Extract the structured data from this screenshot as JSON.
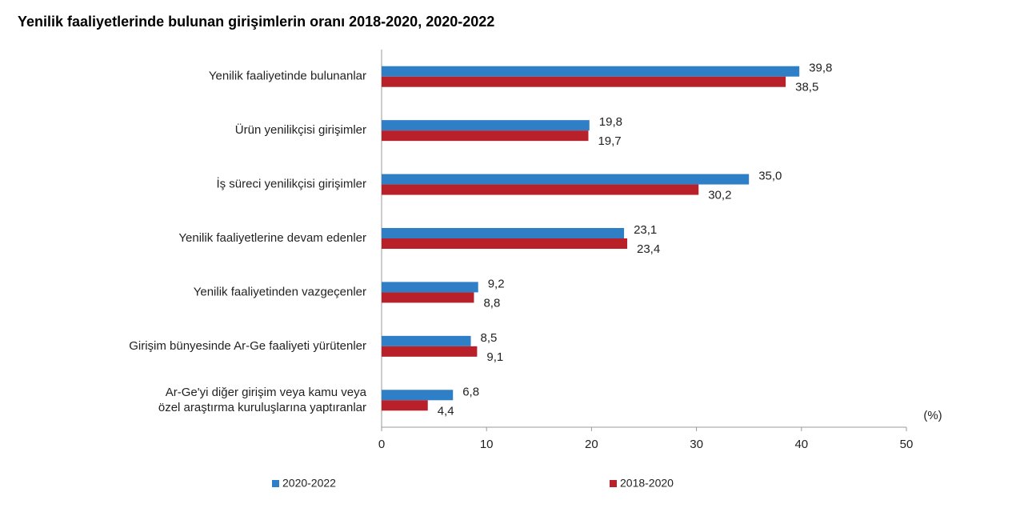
{
  "chart_data": {
    "type": "bar",
    "orientation": "horizontal",
    "title": "Yenilik faaliyetlerinde bulunan girişimlerin oranı 2018-2020, 2020-2022",
    "categories": [
      "Yenilik faaliyetinde bulunanlar",
      "Ürün yenilikçisi girişimler",
      "İş süreci yenilikçisi girişimler",
      "Yenilik faaliyetlerine devam edenler",
      "Yenilik faaliyetinden vazgeçenler",
      "Girişim bünyesinde Ar-Ge faaliyeti yürütenler",
      "Ar-Ge'yi diğer girişim veya kamu veya\nözel araştırma kuruluşlarına yaptıranlar"
    ],
    "series": [
      {
        "name": "2020-2022",
        "color": "#2f7fc6",
        "values": [
          39.8,
          19.8,
          35.0,
          23.1,
          9.2,
          8.5,
          6.8
        ],
        "value_labels": [
          "39,8",
          "19,8",
          "35,0",
          "23,1",
          "9,2",
          "8,5",
          "6,8"
        ]
      },
      {
        "name": "2018-2020",
        "color": "#b8202a",
        "values": [
          38.5,
          19.7,
          30.2,
          23.4,
          8.8,
          9.1,
          4.4
        ],
        "value_labels": [
          "38,5",
          "19,7",
          "30,2",
          "23,4",
          "8,8",
          "9,1",
          "4,4"
        ]
      }
    ],
    "xlabel": "(%)",
    "xlim": [
      0,
      50
    ],
    "xticks": [
      0,
      10,
      20,
      30,
      40,
      50
    ],
    "grid": false
  }
}
